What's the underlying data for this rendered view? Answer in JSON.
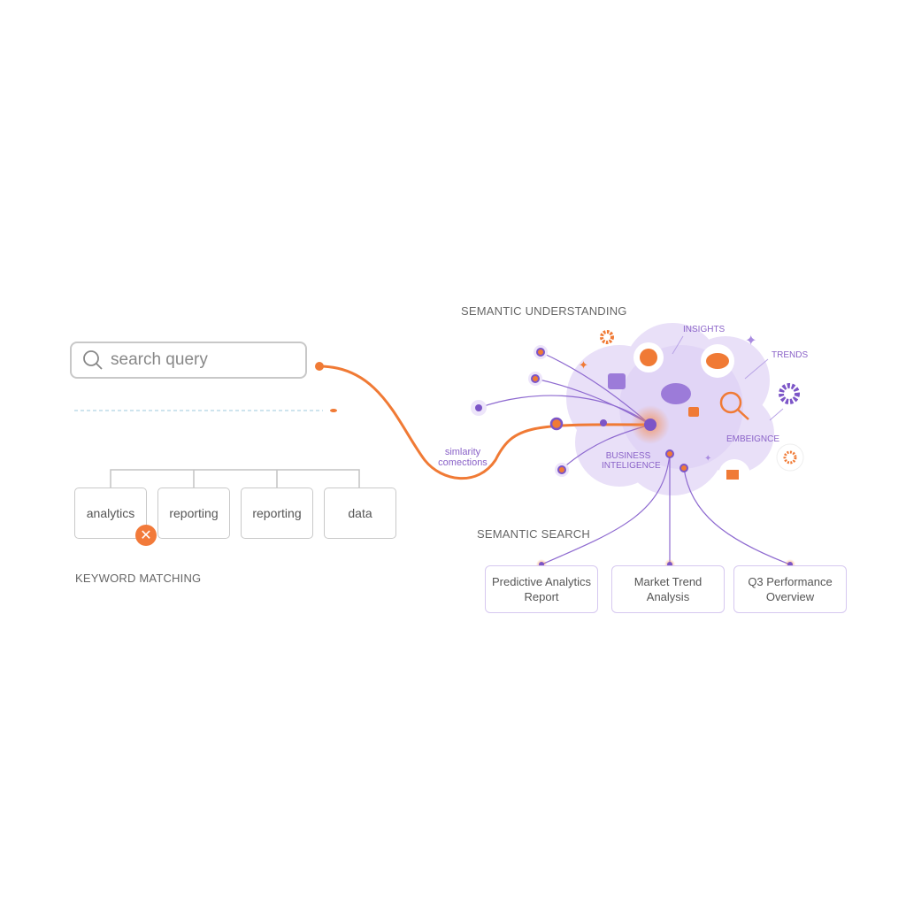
{
  "search": {
    "placeholder": "search query",
    "icon": "search-icon"
  },
  "keyword": {
    "title": "KEYWORD MATCHING",
    "terms": [
      "analytics",
      "reporting",
      "reporting",
      "data"
    ],
    "mismatch_icon": "close-icon"
  },
  "semantic": {
    "title": "SEMANTIC UNDERSTANDING",
    "cloud_labels": {
      "insights": "INSIGHTS",
      "trends": "TRENDS",
      "emergence": "EMBEIGNCE",
      "bi_line1": "BUSINESS",
      "bi_line2": "INTELIGENCE"
    },
    "connector_line1": "simlarity",
    "connector_line2": "comections"
  },
  "results": {
    "title": "SEMANTIC SEARCH",
    "items": [
      {
        "line1": "Predictive Analytics",
        "line2": "Report"
      },
      {
        "line1": "Market Trend",
        "line2": "Analysis"
      },
      {
        "line1": "Q3 Performance",
        "line2": "Overview"
      }
    ]
  },
  "colors": {
    "orange": "#f07a35",
    "purple": "#7c55c7",
    "cloud": "#e6dcf7"
  }
}
